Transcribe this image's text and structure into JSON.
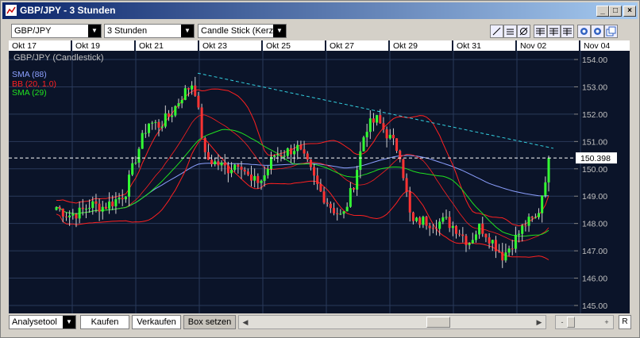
{
  "window": {
    "title": "GBP/JPY - 3 Stunden",
    "controls": {
      "minimize": "_",
      "maximize": "□",
      "close": "×"
    }
  },
  "toolbar": {
    "symbol": "GBP/JPY",
    "interval": "3 Stunden",
    "chart_type": "Candle Stick (Kerze"
  },
  "chart_data": {
    "type": "candlestick",
    "title": "GBP/JPY (Candlestick)",
    "indicators": [
      {
        "name": "SMA (88)",
        "color": "#8ca0ff"
      },
      {
        "name": "BB (20, 1.0)",
        "color": "#ff2020"
      },
      {
        "name": "SMA (29)",
        "color": "#20e020"
      }
    ],
    "x_tick_labels": [
      "Okt 17",
      "Okt 19",
      "Okt 21",
      "Okt 23",
      "Okt 25",
      "Okt 27",
      "Okt 29",
      "Okt 31",
      "Nov 02",
      "Nov 04"
    ],
    "y_tick_labels": [
      "154.00",
      "153.00",
      "152.00",
      "151.00",
      "150.00",
      "149.00",
      "148.00",
      "147.00",
      "146.00",
      "145.00"
    ],
    "ylim": [
      145.0,
      154.0
    ],
    "current_price_label": "150.398",
    "current_price": 150.398,
    "colors": {
      "background": "#0b1429",
      "grid": "#2a3a5a",
      "up": "#33ff33",
      "down": "#ff3333",
      "trendline": "#33d0e0"
    },
    "key_closes": [
      148.6,
      148.3,
      148.4,
      148.7,
      148.6,
      148.8,
      149.1,
      150.5,
      151.7,
      151.6,
      152.0,
      152.7,
      153.2,
      150.4,
      150.2,
      150.0,
      150.3,
      149.5,
      149.6,
      150.5,
      150.6,
      150.8,
      150.1,
      149.2,
      148.6,
      148.2,
      149.5,
      151.5,
      151.8,
      151.2,
      150.6,
      148.0,
      148.1,
      148.0,
      148.1,
      147.8,
      147.3,
      147.9,
      147.4,
      146.8,
      147.4,
      148.0,
      148.2,
      150.3
    ]
  },
  "bottom": {
    "analysetool": "Analysetool",
    "kaufen": "Kaufen",
    "verkaufen": "Verkaufen",
    "box_setzen": "Box setzen",
    "zoom_minus": "-",
    "zoom_plus": "+",
    "reset": "R"
  }
}
